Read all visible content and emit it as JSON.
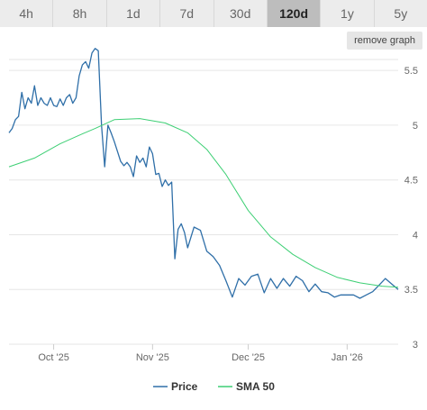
{
  "tabs": [
    {
      "label": "4h",
      "active": false
    },
    {
      "label": "8h",
      "active": false
    },
    {
      "label": "1d",
      "active": false
    },
    {
      "label": "7d",
      "active": false
    },
    {
      "label": "30d",
      "active": false
    },
    {
      "label": "120d",
      "active": true
    },
    {
      "label": "1y",
      "active": false
    },
    {
      "label": "5y",
      "active": false
    }
  ],
  "remove_graph_label": "remove graph",
  "colors": {
    "price": "#2f6fa8",
    "sma": "#3dcf74",
    "grid": "#e6e6e6"
  },
  "chart_data": {
    "type": "line",
    "x_domain": [
      "2025-09-17",
      "2026-01-17"
    ],
    "x_ticks": [
      {
        "date": "2025-10-01",
        "label": "Oct '25"
      },
      {
        "date": "2025-11-01",
        "label": "Nov '25"
      },
      {
        "date": "2025-12-01",
        "label": "Dec '25"
      },
      {
        "date": "2026-01-01",
        "label": "Jan '26"
      }
    ],
    "y_ticks": [
      "5.5",
      "5",
      "4.5",
      "4",
      "3.5",
      "3"
    ],
    "ylim": [
      3,
      5.6
    ],
    "grid": true,
    "legend_position": "bottom-center",
    "series": [
      {
        "name": "Price",
        "x": [
          "2025-09-17",
          "2025-09-18",
          "2025-09-19",
          "2025-09-20",
          "2025-09-21",
          "2025-09-22",
          "2025-09-23",
          "2025-09-24",
          "2025-09-25",
          "2025-09-26",
          "2025-09-27",
          "2025-09-28",
          "2025-09-29",
          "2025-09-30",
          "2025-10-01",
          "2025-10-02",
          "2025-10-03",
          "2025-10-04",
          "2025-10-05",
          "2025-10-06",
          "2025-10-07",
          "2025-10-08",
          "2025-10-09",
          "2025-10-10",
          "2025-10-11",
          "2025-10-12",
          "2025-10-13",
          "2025-10-14",
          "2025-10-15",
          "2025-10-16",
          "2025-10-17",
          "2025-10-18",
          "2025-10-19",
          "2025-10-20",
          "2025-10-21",
          "2025-10-22",
          "2025-10-23",
          "2025-10-24",
          "2025-10-25",
          "2025-10-26",
          "2025-10-27",
          "2025-10-28",
          "2025-10-29",
          "2025-10-30",
          "2025-10-31",
          "2025-11-01",
          "2025-11-02",
          "2025-11-03",
          "2025-11-04",
          "2025-11-05",
          "2025-11-06",
          "2025-11-07",
          "2025-11-08",
          "2025-11-09",
          "2025-11-10",
          "2025-11-11",
          "2025-11-12",
          "2025-11-14",
          "2025-11-16",
          "2025-11-18",
          "2025-11-20",
          "2025-11-22",
          "2025-11-24",
          "2025-11-26",
          "2025-11-28",
          "2025-11-30",
          "2025-12-02",
          "2025-12-04",
          "2025-12-06",
          "2025-12-08",
          "2025-12-10",
          "2025-12-12",
          "2025-12-14",
          "2025-12-16",
          "2025-12-18",
          "2025-12-20",
          "2025-12-22",
          "2025-12-24",
          "2025-12-26",
          "2025-12-28",
          "2025-12-30",
          "2026-01-01",
          "2026-01-03",
          "2026-01-05",
          "2026-01-07",
          "2026-01-09",
          "2026-01-11",
          "2026-01-13",
          "2026-01-15",
          "2026-01-17"
        ],
        "y": [
          4.93,
          4.97,
          5.05,
          5.08,
          5.3,
          5.15,
          5.25,
          5.2,
          5.36,
          5.18,
          5.25,
          5.2,
          5.18,
          5.25,
          5.18,
          5.17,
          5.24,
          5.18,
          5.25,
          5.28,
          5.2,
          5.25,
          5.45,
          5.55,
          5.58,
          5.52,
          5.66,
          5.7,
          5.68,
          5.0,
          4.62,
          5.0,
          4.93,
          4.85,
          4.76,
          4.67,
          4.63,
          4.66,
          4.62,
          4.53,
          4.72,
          4.66,
          4.7,
          4.62,
          4.8,
          4.74,
          4.55,
          4.56,
          4.44,
          4.5,
          4.45,
          4.48,
          3.78,
          4.05,
          4.1,
          4.02,
          3.88,
          4.07,
          4.04,
          3.85,
          3.8,
          3.72,
          3.58,
          3.43,
          3.6,
          3.54,
          3.62,
          3.64,
          3.47,
          3.6,
          3.51,
          3.6,
          3.53,
          3.62,
          3.58,
          3.48,
          3.55,
          3.48,
          3.47,
          3.43,
          3.45,
          3.45,
          3.45,
          3.42,
          3.45,
          3.48,
          3.54,
          3.6,
          3.55,
          3.5
        ]
      },
      {
        "name": "SMA 50",
        "x": [
          "2025-09-17",
          "2025-09-25",
          "2025-10-03",
          "2025-10-10",
          "2025-10-14",
          "2025-10-20",
          "2025-10-28",
          "2025-11-05",
          "2025-11-12",
          "2025-11-18",
          "2025-11-24",
          "2025-12-01",
          "2025-12-08",
          "2025-12-15",
          "2025-12-22",
          "2025-12-29",
          "2026-01-05",
          "2026-01-12",
          "2026-01-17"
        ],
        "y": [
          4.62,
          4.7,
          4.83,
          4.92,
          4.97,
          5.05,
          5.06,
          5.02,
          4.93,
          4.78,
          4.55,
          4.22,
          3.98,
          3.82,
          3.7,
          3.61,
          3.56,
          3.53,
          3.52
        ]
      }
    ]
  }
}
